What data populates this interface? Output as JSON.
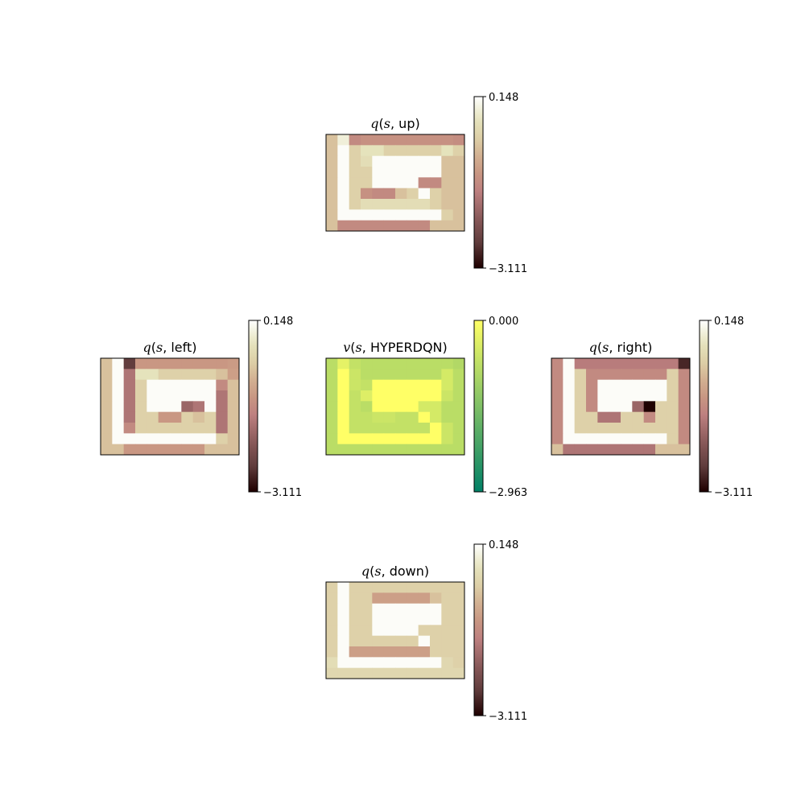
{
  "chart_data": [
    {
      "type": "heatmap",
      "id": "up",
      "title": {
        "fn": "q",
        "arg": "s",
        "label": "up"
      },
      "colormap": "pink",
      "colorbar": {
        "max_label": "0.148",
        "min_label": "−3.111",
        "vmax": 0.148,
        "vmin": -3.111
      },
      "values": [
        [
          -0.8,
          -0.1,
          -1.5,
          -1.4,
          -1.4,
          -1.4,
          -1.4,
          -1.4,
          -1.4,
          -1.4,
          -1.4,
          -1.45
        ],
        [
          -0.8,
          0.1,
          -0.6,
          -0.3,
          -0.3,
          -0.6,
          -0.6,
          -0.6,
          -0.6,
          -0.6,
          -0.3,
          -0.6
        ],
        [
          -0.8,
          0.1,
          -0.6,
          -0.4,
          0.1,
          0.1,
          0.1,
          0.1,
          0.1,
          0.1,
          -0.8,
          -0.8
        ],
        [
          -0.8,
          0.1,
          -0.6,
          -0.6,
          0.1,
          0.1,
          0.1,
          0.1,
          0.1,
          0.1,
          -0.8,
          -0.8
        ],
        [
          -0.8,
          0.1,
          -0.6,
          -0.6,
          0.1,
          0.1,
          0.1,
          0.1,
          -1.5,
          -1.5,
          -0.8,
          -0.8
        ],
        [
          -0.8,
          0.1,
          -0.6,
          -1.4,
          -1.5,
          -1.5,
          -0.8,
          -0.6,
          0.1,
          -0.6,
          -0.8,
          -0.8
        ],
        [
          -0.8,
          0.1,
          -0.6,
          -0.4,
          -0.4,
          -0.4,
          -0.4,
          -0.4,
          -0.4,
          -0.6,
          -0.8,
          -0.8
        ],
        [
          -0.8,
          0.1,
          0.1,
          0.1,
          0.1,
          0.1,
          0.1,
          0.1,
          0.1,
          0.1,
          -0.6,
          -0.8
        ],
        [
          -0.8,
          -1.5,
          -1.5,
          -1.5,
          -1.5,
          -1.5,
          -1.5,
          -1.5,
          -1.5,
          -0.8,
          -0.8,
          -0.8
        ]
      ]
    },
    {
      "type": "heatmap",
      "id": "left",
      "title": {
        "fn": "q",
        "arg": "s",
        "label": "left"
      },
      "colormap": "pink",
      "colorbar": {
        "max_label": "0.148",
        "min_label": "−3.111",
        "vmax": 0.148,
        "vmin": -3.111
      },
      "values": [
        [
          -0.8,
          0.1,
          -2.6,
          -1.3,
          -1.3,
          -1.3,
          -1.3,
          -1.3,
          -1.3,
          -1.3,
          -1.3,
          -1.25
        ],
        [
          -0.8,
          0.1,
          -1.8,
          -0.3,
          -0.3,
          -0.6,
          -0.6,
          -0.6,
          -0.6,
          -0.6,
          -0.8,
          -1.2
        ],
        [
          -0.8,
          0.1,
          -1.8,
          -0.6,
          0.1,
          0.1,
          0.1,
          0.1,
          0.1,
          0.1,
          -1.5,
          -0.8
        ],
        [
          -0.8,
          0.1,
          -1.8,
          -0.6,
          0.1,
          0.1,
          0.1,
          0.1,
          0.1,
          0.1,
          -1.8,
          -0.8
        ],
        [
          -0.8,
          0.1,
          -1.8,
          -0.6,
          0.1,
          0.1,
          0.1,
          -2.0,
          -1.8,
          0.1,
          -1.8,
          -0.8
        ],
        [
          -0.8,
          0.1,
          -1.8,
          -0.6,
          -0.6,
          -1.3,
          -1.3,
          -0.6,
          -0.8,
          -0.6,
          -1.8,
          -0.8
        ],
        [
          -0.8,
          0.1,
          -1.5,
          -0.6,
          -0.6,
          -0.6,
          -0.6,
          -0.6,
          -0.6,
          -0.6,
          -1.8,
          -0.8
        ],
        [
          -0.8,
          0.1,
          0.1,
          0.1,
          0.1,
          0.1,
          0.1,
          0.1,
          0.1,
          0.1,
          -0.6,
          -0.8
        ],
        [
          -0.8,
          -0.8,
          -1.3,
          -1.3,
          -1.3,
          -1.3,
          -1.3,
          -1.3,
          -1.3,
          -0.8,
          -0.8,
          -0.8
        ]
      ]
    },
    {
      "type": "heatmap",
      "id": "value",
      "title": {
        "fn": "v",
        "arg": "s",
        "label": "HYPERDQN"
      },
      "colormap": "summer",
      "colorbar": {
        "max_label": "0.000",
        "min_label": "−2.963",
        "vmax": 0.0,
        "vmin": -2.963
      },
      "values": [
        [
          -0.8,
          -0.3,
          -0.7,
          -0.8,
          -0.8,
          -0.8,
          -0.8,
          -0.8,
          -0.8,
          -0.8,
          -0.8,
          -0.9
        ],
        [
          -0.8,
          0.0,
          -0.6,
          -0.8,
          -0.8,
          -0.8,
          -0.8,
          -0.8,
          -0.8,
          -0.8,
          -0.5,
          -0.8
        ],
        [
          -0.8,
          0.0,
          -0.6,
          -0.7,
          0.0,
          0.0,
          0.0,
          0.0,
          0.0,
          0.0,
          -0.5,
          -0.8
        ],
        [
          -0.8,
          0.0,
          -0.7,
          -0.4,
          0.0,
          0.0,
          0.0,
          0.0,
          0.0,
          0.0,
          -0.6,
          -0.8
        ],
        [
          -0.8,
          0.0,
          -0.7,
          -0.8,
          0.0,
          0.0,
          0.0,
          0.0,
          -0.5,
          -0.5,
          -0.8,
          -0.8
        ],
        [
          -0.8,
          0.0,
          -0.7,
          -0.7,
          -0.6,
          -0.6,
          -0.7,
          -0.7,
          0.0,
          -0.5,
          -0.8,
          -0.8
        ],
        [
          -0.8,
          0.0,
          -0.7,
          -0.7,
          -0.7,
          -0.7,
          -0.7,
          -0.7,
          -0.7,
          0.0,
          -0.6,
          -0.8
        ],
        [
          -0.8,
          0.0,
          0.0,
          0.0,
          0.0,
          0.0,
          0.0,
          0.0,
          0.0,
          0.0,
          -0.6,
          -0.8
        ],
        [
          -0.8,
          -0.8,
          -0.8,
          -0.8,
          -0.8,
          -0.8,
          -0.8,
          -0.8,
          -0.8,
          -0.8,
          -0.8,
          -0.8
        ]
      ]
    },
    {
      "type": "heatmap",
      "id": "right",
      "title": {
        "fn": "q",
        "arg": "s",
        "label": "right"
      },
      "colormap": "pink",
      "colorbar": {
        "max_label": "0.148",
        "min_label": "−3.111",
        "vmax": 0.148,
        "vmin": -3.111
      },
      "values": [
        [
          -1.5,
          0.1,
          -1.7,
          -1.7,
          -1.7,
          -1.7,
          -1.7,
          -1.7,
          -1.7,
          -1.7,
          -1.7,
          -2.8
        ],
        [
          -1.5,
          0.1,
          -0.6,
          -1.5,
          -1.5,
          -1.5,
          -1.5,
          -1.5,
          -1.5,
          -1.5,
          -0.6,
          -1.5
        ],
        [
          -1.5,
          0.1,
          -0.6,
          -1.5,
          0.1,
          0.1,
          0.1,
          0.1,
          0.1,
          0.1,
          -0.6,
          -1.5
        ],
        [
          -1.5,
          0.1,
          -0.6,
          -1.5,
          0.1,
          0.1,
          0.1,
          0.1,
          0.1,
          0.1,
          -0.6,
          -1.5
        ],
        [
          -1.5,
          0.1,
          -0.6,
          -1.5,
          0.1,
          0.1,
          0.1,
          -2.0,
          -3.1,
          -0.6,
          -0.6,
          -1.5
        ],
        [
          -1.5,
          0.1,
          -0.6,
          -0.6,
          -1.8,
          -1.8,
          -0.6,
          -0.6,
          -1.5,
          -0.6,
          -0.6,
          -1.5
        ],
        [
          -1.5,
          0.1,
          -0.6,
          -0.6,
          -0.6,
          -0.6,
          -0.6,
          -0.6,
          -0.6,
          -0.6,
          -0.6,
          -1.5
        ],
        [
          -1.5,
          0.1,
          0.1,
          0.1,
          0.1,
          0.1,
          0.1,
          0.1,
          0.1,
          0.1,
          -0.6,
          -1.5
        ],
        [
          -0.8,
          -1.8,
          -1.8,
          -1.8,
          -1.8,
          -1.8,
          -1.8,
          -1.8,
          -1.8,
          -0.8,
          -0.8,
          -0.8
        ]
      ]
    },
    {
      "type": "heatmap",
      "id": "down",
      "title": {
        "fn": "q",
        "arg": "s",
        "label": "down"
      },
      "colormap": "pink",
      "colorbar": {
        "max_label": "0.148",
        "min_label": "−3.111",
        "vmax": 0.148,
        "vmin": -3.111
      },
      "values": [
        [
          -0.6,
          0.1,
          -0.6,
          -0.6,
          -0.6,
          -0.6,
          -0.6,
          -0.6,
          -0.6,
          -0.6,
          -0.6,
          -0.6
        ],
        [
          -0.6,
          0.1,
          -0.6,
          -0.6,
          -1.2,
          -1.2,
          -1.2,
          -1.2,
          -1.2,
          -0.8,
          -0.6,
          -0.6
        ],
        [
          -0.6,
          0.1,
          -0.6,
          -0.6,
          0.1,
          0.1,
          0.1,
          0.1,
          0.1,
          0.1,
          -0.6,
          -0.6
        ],
        [
          -0.6,
          0.1,
          -0.6,
          -0.6,
          0.1,
          0.1,
          0.1,
          0.1,
          0.1,
          0.1,
          -0.6,
          -0.6
        ],
        [
          -0.6,
          0.1,
          -0.6,
          -0.6,
          0.1,
          0.1,
          0.1,
          0.1,
          -0.6,
          -0.6,
          -0.6,
          -0.6
        ],
        [
          -0.6,
          0.1,
          -0.6,
          -0.6,
          -0.6,
          -0.6,
          -0.6,
          -0.6,
          0.1,
          -0.6,
          -0.6,
          -0.6
        ],
        [
          -0.6,
          0.1,
          -1.2,
          -1.2,
          -1.2,
          -1.2,
          -1.2,
          -1.2,
          -1.2,
          -0.6,
          -0.6,
          -0.6
        ],
        [
          -0.4,
          0.1,
          0.1,
          0.1,
          0.1,
          0.1,
          0.1,
          0.1,
          0.1,
          0.1,
          -0.5,
          -0.6
        ],
        [
          -0.5,
          -0.5,
          -0.5,
          -0.5,
          -0.5,
          -0.5,
          -0.5,
          -0.5,
          -0.5,
          -0.5,
          -0.5,
          -0.5
        ]
      ]
    }
  ]
}
